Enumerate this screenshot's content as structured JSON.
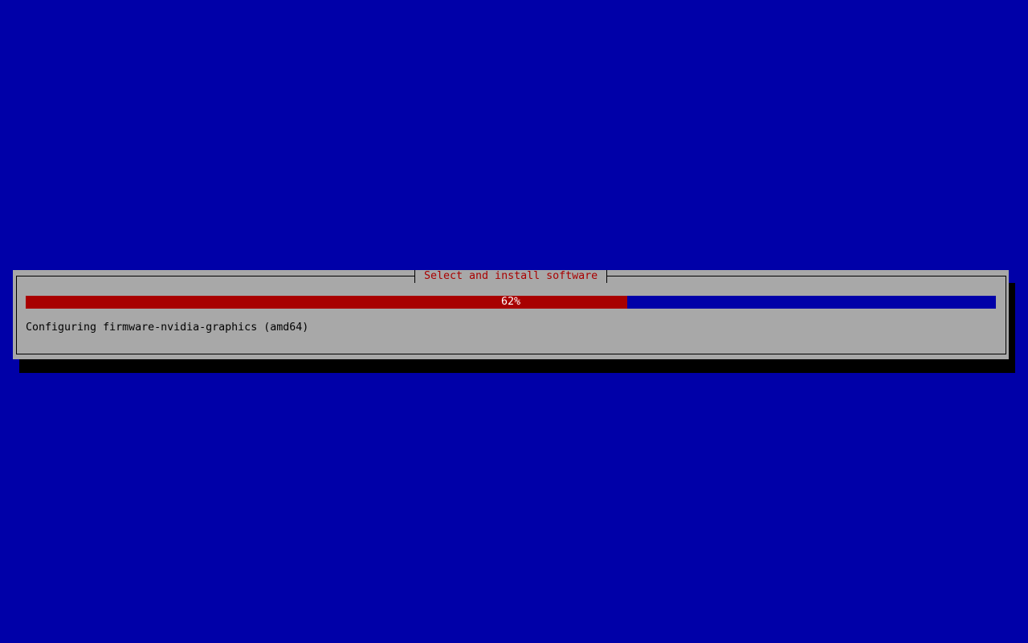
{
  "dialog": {
    "title": "Select and install software",
    "progress": {
      "percent": 62,
      "label": "62%"
    },
    "status": "Configuring firmware-nvidia-graphics (amd64)"
  },
  "colors": {
    "background": "#0000a8",
    "dialog": "#a8a8a8",
    "progress_fill": "#a80000",
    "title": "#a80000"
  }
}
